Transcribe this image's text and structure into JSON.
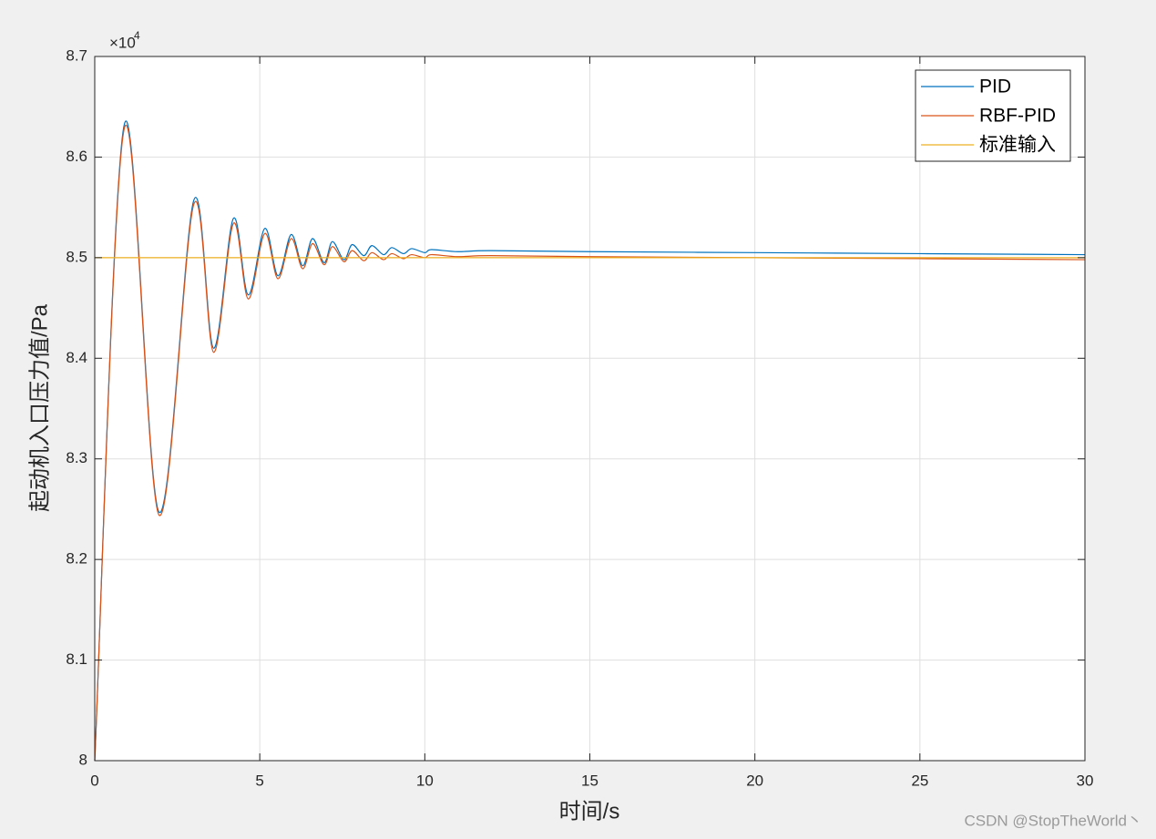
{
  "chart_data": {
    "type": "line",
    "xlabel": "时间/s",
    "ylabel": "起动机入口压力值/Pa",
    "y_exponent_base": "×10",
    "y_exponent_power": "4",
    "watermark": "CSDN @StopTheWorld丶",
    "xlim": [
      0,
      30
    ],
    "ylim": [
      8.0,
      8.7
    ],
    "xticks": [
      0,
      5,
      10,
      15,
      20,
      25,
      30
    ],
    "yticks": [
      8,
      8.1,
      8.2,
      8.3,
      8.4,
      8.5,
      8.6,
      8.7
    ],
    "grid": true,
    "legend": "northeast",
    "series": [
      {
        "name": "PID",
        "color": "#0072bd",
        "x": [
          0,
          0.9,
          1.95,
          3.0,
          3.6,
          4.2,
          4.65,
          5.15,
          5.55,
          5.95,
          6.3,
          6.6,
          6.95,
          7.2,
          7.55,
          7.8,
          8.15,
          8.4,
          8.75,
          9.0,
          9.35,
          9.6,
          10,
          10.2,
          11,
          12,
          15,
          20,
          25,
          30
        ],
        "values": [
          8.0,
          8.633,
          8.247,
          8.557,
          8.41,
          8.539,
          8.463,
          8.529,
          8.482,
          8.523,
          8.492,
          8.519,
          8.495,
          8.516,
          8.498,
          8.513,
          8.502,
          8.512,
          8.503,
          8.51,
          8.504,
          8.509,
          8.505,
          8.508,
          8.506,
          8.507,
          8.506,
          8.505,
          8.504,
          8.503
        ]
      },
      {
        "name": "RBF-PID",
        "color": "#d95319",
        "x": [
          0,
          0.9,
          1.95,
          3.0,
          3.6,
          4.2,
          4.65,
          5.15,
          5.55,
          5.95,
          6.3,
          6.6,
          6.95,
          7.2,
          7.55,
          7.8,
          8.15,
          8.4,
          8.75,
          9.0,
          9.35,
          9.6,
          10,
          10.2,
          11,
          12,
          15,
          20,
          25,
          30
        ],
        "values": [
          8.0,
          8.629,
          8.244,
          8.553,
          8.406,
          8.534,
          8.459,
          8.524,
          8.479,
          8.519,
          8.489,
          8.514,
          8.493,
          8.511,
          8.496,
          8.507,
          8.497,
          8.505,
          8.498,
          8.504,
          8.499,
          8.503,
          8.5,
          8.503,
          8.501,
          8.502,
          8.501,
          8.5,
          8.499,
          8.498
        ]
      },
      {
        "name": "标准输入",
        "color": "#edb120",
        "x": [
          0,
          30
        ],
        "values": [
          8.5,
          8.5
        ]
      }
    ]
  }
}
